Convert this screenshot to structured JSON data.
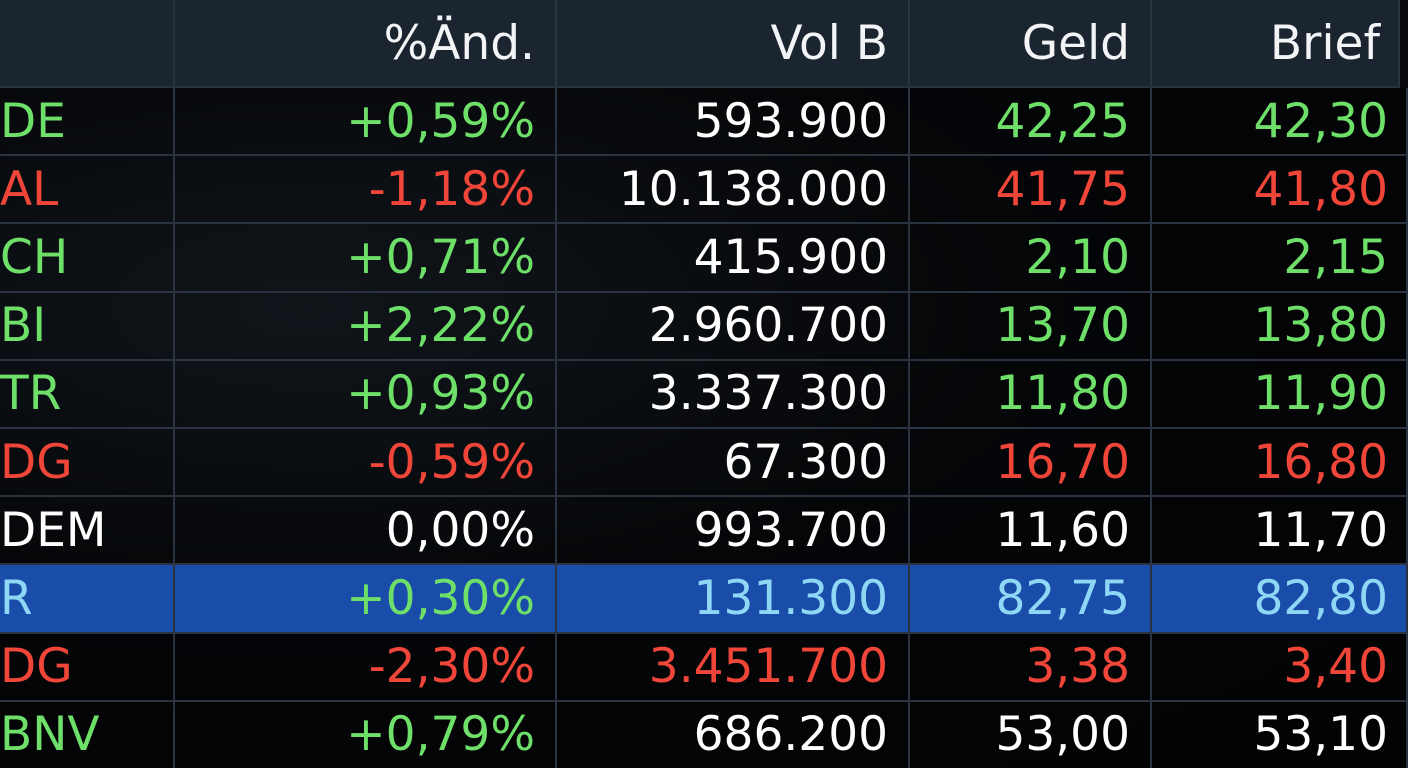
{
  "table": {
    "header": [
      "",
      "%Änd.",
      "Vol B",
      "Geld",
      "Brief"
    ],
    "rows": [
      {
        "cells": [
          "DE",
          "+0,59%",
          "593.900",
          "42,25",
          "42,30"
        ],
        "colors": [
          "#6ee06a",
          "#6ee06a",
          "#ffffff",
          "#6ee06a",
          "#6ee06a"
        ]
      },
      {
        "cells": [
          "AL",
          "-1,18%",
          "10.138.000",
          "41,75",
          "41,80"
        ],
        "colors": [
          "#f0463a",
          "#f0463a",
          "#ffffff",
          "#f0463a",
          "#f0463a"
        ]
      },
      {
        "cells": [
          "CH",
          "+0,71%",
          "415.900",
          "2,10",
          "2,15"
        ],
        "colors": [
          "#6ee06a",
          "#6ee06a",
          "#ffffff",
          "#6ee06a",
          "#6ee06a"
        ]
      },
      {
        "cells": [
          "BI",
          "+2,22%",
          "2.960.700",
          "13,70",
          "13,80"
        ],
        "colors": [
          "#6ee06a",
          "#6ee06a",
          "#ffffff",
          "#6ee06a",
          "#6ee06a"
        ]
      },
      {
        "cells": [
          "TR",
          "+0,93%",
          "3.337.300",
          "11,80",
          "11,90"
        ],
        "colors": [
          "#6ee06a",
          "#6ee06a",
          "#ffffff",
          "#6ee06a",
          "#6ee06a"
        ]
      },
      {
        "cells": [
          "DG",
          "-0,59%",
          "67.300",
          "16,70",
          "16,80"
        ],
        "colors": [
          "#f0463a",
          "#f0463a",
          "#ffffff",
          "#f0463a",
          "#f0463a"
        ]
      },
      {
        "cells": [
          "DEM",
          "0,00%",
          "993.700",
          "11,60",
          "11,70"
        ],
        "colors": [
          "#ffffff",
          "#ffffff",
          "#ffffff",
          "#ffffff",
          "#ffffff"
        ]
      },
      {
        "cells": [
          "R",
          "+0,30%",
          "131.300",
          "82,75",
          "82,80"
        ],
        "colors": [
          "#8fd8f5",
          "#6ee06a",
          "#8fd8f5",
          "#8fd8f5",
          "#8fd8f5"
        ],
        "highlight": true
      },
      {
        "cells": [
          "DG",
          "-2,30%",
          "3.451.700",
          "3,38",
          "3,40"
        ],
        "colors": [
          "#f0463a",
          "#f0463a",
          "#f0463a",
          "#f0463a",
          "#f0463a"
        ]
      },
      {
        "cells": [
          "BNV",
          "+0,79%",
          "686.200",
          "53,00",
          "53,10"
        ],
        "colors": [
          "#6ee06a",
          "#6ee06a",
          "#ffffff",
          "#ffffff",
          "#ffffff"
        ]
      }
    ]
  }
}
